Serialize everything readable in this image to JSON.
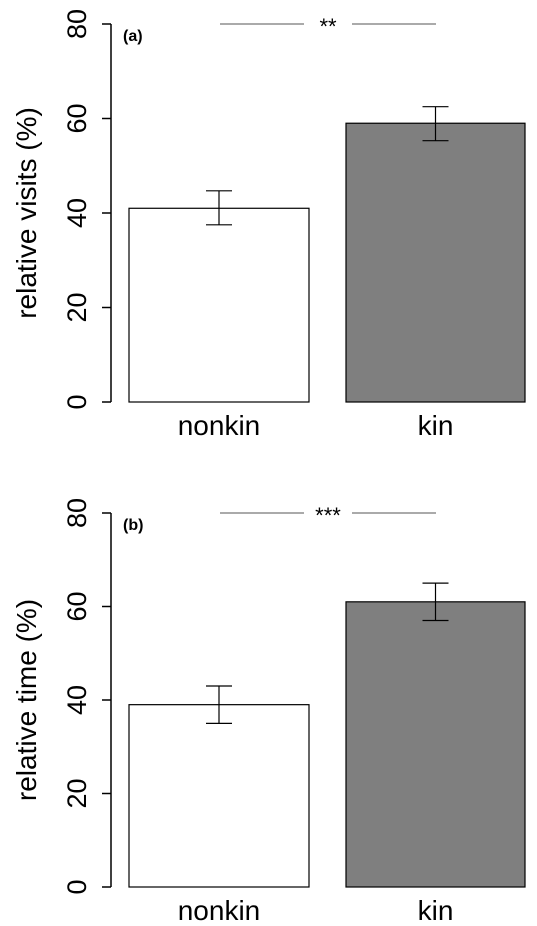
{
  "chart_data": [
    {
      "type": "bar",
      "panel_label": "(a)",
      "categories": [
        "nonkin",
        "kin"
      ],
      "values": [
        41,
        59
      ],
      "error_low": [
        37.5,
        55.3
      ],
      "error_high": [
        44.7,
        62.5
      ],
      "bar_colors": [
        "#ffffff",
        "#7f7f7f"
      ],
      "ylabel": "relative visits (%)",
      "ylim": [
        0,
        80
      ],
      "yticks": [
        "0",
        "20",
        "40",
        "60",
        "80"
      ],
      "significance": "**",
      "grid": false
    },
    {
      "type": "bar",
      "panel_label": "(b)",
      "categories": [
        "nonkin",
        "kin"
      ],
      "values": [
        39,
        61
      ],
      "error_low": [
        35,
        57
      ],
      "error_high": [
        43,
        65
      ],
      "bar_colors": [
        "#ffffff",
        "#7f7f7f"
      ],
      "ylabel": "relative time (%)",
      "ylim": [
        0,
        80
      ],
      "yticks": [
        "0",
        "20",
        "40",
        "60",
        "80"
      ],
      "significance": "***",
      "grid": false
    }
  ]
}
